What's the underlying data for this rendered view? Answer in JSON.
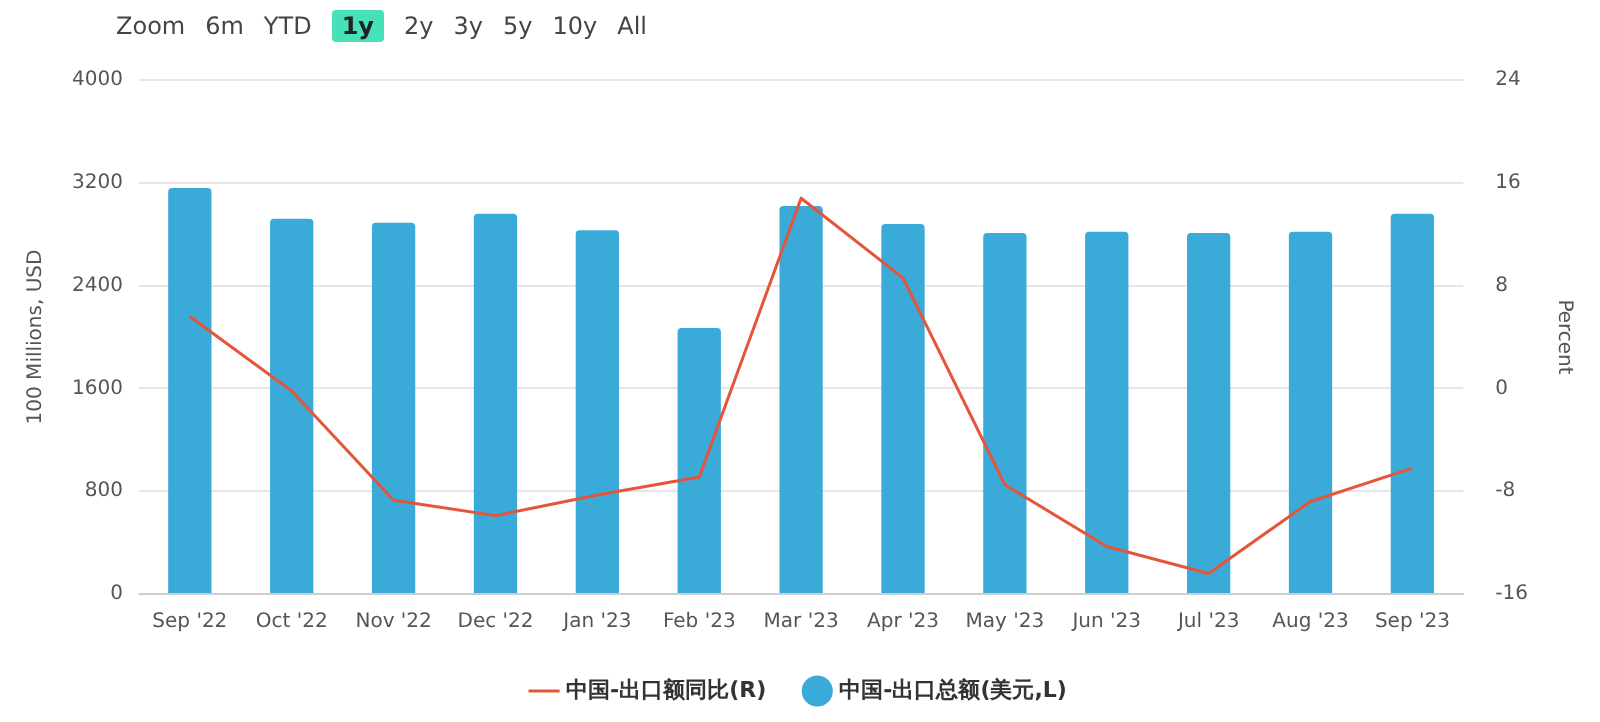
{
  "chart_data": {
    "type": "bar",
    "categories": [
      "Sep '22",
      "Oct '22",
      "Nov '22",
      "Dec '22",
      "Jan '23",
      "Feb '23",
      "Mar '23",
      "Apr '23",
      "May '23",
      "Jun '23",
      "Jul '23",
      "Aug '23",
      "Sep '23"
    ],
    "series": [
      {
        "name": "中国-出口总额(美元,L)",
        "color": "#3aabd9",
        "values": [
          3160,
          2920,
          2890,
          2960,
          2830,
          2070,
          3020,
          2880,
          2810,
          2820,
          2810,
          2820,
          2960
        ]
      },
      {
        "name": "中国-出口额同比(R)",
        "type": "line",
        "axis": "y2",
        "color": "#e4553a",
        "values": [
          5.6,
          -0.2,
          -8.7,
          -9.9,
          -8.3,
          -6.9,
          14.8,
          8.6,
          -7.5,
          -12.3,
          -14.4,
          -8.8,
          -6.2
        ]
      }
    ],
    "ylabel": "100 Millions, USD",
    "y2label": "Percent",
    "ylim": [
      0,
      4000
    ],
    "yticks": [
      0,
      800,
      1600,
      2400,
      3200,
      4000
    ],
    "y2lim": [
      -16,
      24
    ],
    "y2ticks": [
      -16,
      -8,
      0,
      8,
      16,
      24
    ],
    "grid": "y",
    "legend": "bottom",
    "marker": "none",
    "annotations": [
      "Zoom",
      "6m",
      "YTD",
      "1y",
      "2y",
      "3y",
      "5y",
      "10y",
      "All"
    ]
  }
}
